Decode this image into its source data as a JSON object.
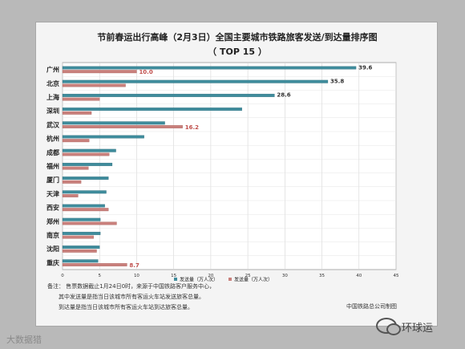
{
  "chart_data": {
    "type": "bar",
    "title": "节前春运出行高峰（2月3日）全国主要城市铁路旅客发送/到达量排序图",
    "subtitle": "（ TOP 15 ）",
    "categories": [
      "广州",
      "北京",
      "上海",
      "深圳",
      "武汉",
      "杭州",
      "成都",
      "福州",
      "厦门",
      "天津",
      "西安",
      "郑州",
      "南京",
      "沈阳",
      "重庆"
    ],
    "series": [
      {
        "name": "发送量（万人次）",
        "color": "#3f8c9c",
        "values": [
          39.6,
          35.8,
          28.6,
          24.2,
          13.8,
          11.0,
          7.2,
          6.7,
          6.2,
          5.9,
          5.7,
          5.1,
          5.1,
          5.0,
          4.8
        ]
      },
      {
        "name": "发送量（万人次）",
        "color": "#c9807c",
        "values": [
          10.0,
          8.5,
          5.0,
          3.9,
          16.2,
          3.6,
          6.3,
          3.5,
          2.5,
          2.1,
          6.2,
          7.3,
          4.2,
          4.6,
          8.7
        ]
      }
    ],
    "data_labels": {
      "0": [
        "39.6",
        "10.0"
      ],
      "1": [
        "35.8",
        ""
      ],
      "2": [
        "28.6",
        ""
      ],
      "4": [
        "",
        "16.2"
      ],
      "14": [
        "",
        "8.7"
      ]
    },
    "xlim": [
      0,
      45
    ],
    "xticks": [
      "0",
      "5",
      "10",
      "15",
      "20",
      "25",
      "30",
      "35",
      "40",
      "45"
    ],
    "legend_position": "bottom-right",
    "grid": true
  },
  "notes": {
    "line1": "备注：   售票数据截止1月24日0时，来源于中国铁路客户服务中心，",
    "line2": "其中发送量是指当日该城市所有客运火车站发送旅客总量。",
    "line3": "到达量是指当日该城市所有客运火车站到达旅客总量。"
  },
  "credit": "中国铁路总公司制图",
  "watermarks": {
    "left": "大数据猎",
    "right": "环球运"
  }
}
